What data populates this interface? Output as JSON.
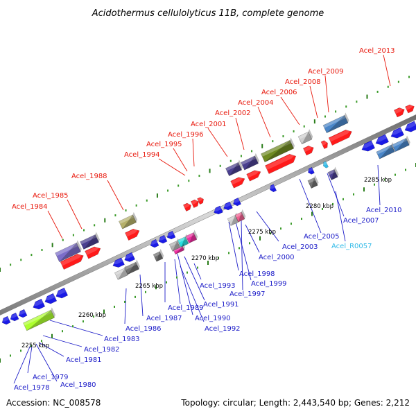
{
  "title": "Acidothermus cellulolyticus 11B, complete genome",
  "footer": {
    "accession": "Accession: NC_008578",
    "topology": "Topology: circular; Length: 2,443,540 bp; Genes: 2,212"
  },
  "colors": {
    "label_top": "#e8180c",
    "label_bottom": "#1c1cc8",
    "label_rna": "#33bbe8",
    "backbone": "#8a8a8a",
    "tick_major": "#2a7d1a",
    "tick_minor": "#3a9a28"
  },
  "kbp_labels": [
    "2255 kbp",
    "2260 kbp",
    "2265 kbp",
    "2270 kbp",
    "2275 kbp",
    "2280 kbp",
    "2285 kbp"
  ],
  "top_labels": [
    "Acel_1984",
    "Acel_1985",
    "Acel_1988",
    "Acel_1994",
    "Acel_1995",
    "Acel_1996",
    "Acel_2001",
    "Acel_2002",
    "Acel_2004",
    "Acel_2006",
    "Acel_2008",
    "Acel_2009",
    "Acel_2013"
  ],
  "bottom_labels": [
    "Acel_1978",
    "Acel_1979",
    "Acel_1980",
    "Acel_1981",
    "Acel_1982",
    "Acel_1983",
    "Acel_1986",
    "Acel_1987",
    "Acel_1989",
    "Acel_1990",
    "Acel_1991",
    "Acel_1992",
    "Acel_1993",
    "Acel_1997",
    "Acel_1998",
    "Acel_1999",
    "Acel_2000",
    "Acel_2003",
    "Acel_2005",
    "Acel_2007",
    "Acel_R0057",
    "Acel_2010"
  ],
  "gene_blocks": [
    {
      "track": "forward-outer",
      "color": "#7b6dc9",
      "kind": "box"
    },
    {
      "track": "forward-outer",
      "color": "#4a3f8f",
      "kind": "box"
    },
    {
      "track": "forward-inner",
      "color": "#ff1a1a",
      "kind": "arrow"
    },
    {
      "track": "reverse",
      "color": "#1a1ae6",
      "kind": "arrow"
    },
    {
      "track": "forward-outer",
      "color": "#b5b06a",
      "kind": "box"
    },
    {
      "track": "forward-outer",
      "color": "#6f8a22",
      "kind": "box"
    },
    {
      "track": "forward-outer",
      "color": "#4a86c8",
      "kind": "box"
    },
    {
      "track": "forward-outer",
      "color": "#cfcfcf",
      "kind": "box"
    },
    {
      "track": "reverse",
      "color": "#adff2f",
      "kind": "box"
    },
    {
      "track": "reverse",
      "color": "#f02ca0",
      "kind": "box"
    },
    {
      "track": "reverse",
      "color": "#2ae0e0",
      "kind": "box"
    }
  ]
}
